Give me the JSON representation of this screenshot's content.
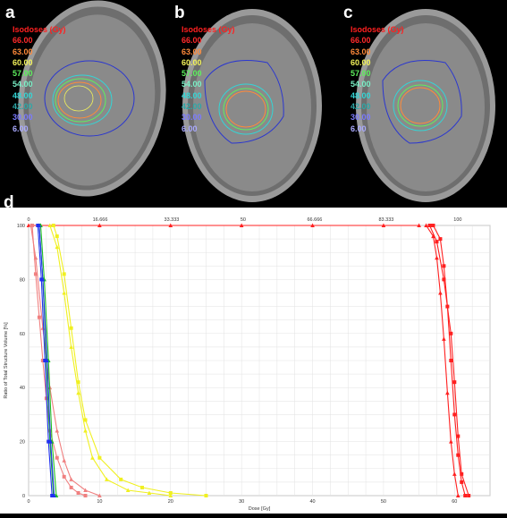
{
  "panels": [
    {
      "letter": "a"
    },
    {
      "letter": "b"
    },
    {
      "letter": "c"
    }
  ],
  "isodose_legend": {
    "title": "Isodoses (Gy)",
    "levels": [
      {
        "label": "66.00",
        "color": "#ff2a2a"
      },
      {
        "label": "63.00",
        "color": "#ff8a3a"
      },
      {
        "label": "60.00",
        "color": "#f2f25a"
      },
      {
        "label": "57.00",
        "color": "#5ef05e"
      },
      {
        "label": "54.00",
        "color": "#7af2c8"
      },
      {
        "label": "48.00",
        "color": "#33d6d6"
      },
      {
        "label": "42.00",
        "color": "#2ea8a8"
      },
      {
        "label": "30.00",
        "color": "#7a7aff"
      },
      {
        "label": "6.00",
        "color": "#aaaaff"
      }
    ]
  },
  "dvh_letter": "d",
  "chart_data": {
    "type": "line",
    "xlabel": "Dose [Gy]",
    "ylabel": "Ratio of Total Structure Volume [%]",
    "xlim": [
      0,
      65
    ],
    "ylim": [
      0,
      100
    ],
    "x_ticks": [
      "0",
      "10",
      "20",
      "30",
      "40",
      "50",
      "60"
    ],
    "y_ticks": [
      "0",
      "20",
      "40",
      "60",
      "80",
      "100"
    ],
    "top_axis_ticks": [
      "0",
      "16.666",
      "33.333",
      "50",
      "66.666",
      "83.333",
      "100"
    ],
    "series": [
      {
        "color": "#ff2020",
        "marker": "square",
        "x": [
          57,
          58,
          58.5,
          59,
          59.5,
          60,
          60.5,
          61,
          61.5
        ],
        "y": [
          100,
          95,
          85,
          70,
          50,
          30,
          15,
          5,
          0
        ]
      },
      {
        "color": "#ff2020",
        "marker": "triangle",
        "x": [
          56,
          57,
          57.5,
          58,
          58.5,
          59,
          59.5,
          60,
          60.5
        ],
        "y": [
          100,
          96,
          88,
          75,
          58,
          38,
          20,
          8,
          0
        ]
      },
      {
        "color": "#ff2020",
        "marker": "square",
        "x": [
          56.5,
          57.5,
          58.5,
          59.5,
          60,
          60.5,
          61,
          62
        ],
        "y": [
          100,
          94,
          80,
          60,
          42,
          22,
          8,
          0
        ]
      },
      {
        "color": "#ff2020",
        "marker": "triangle",
        "x": [
          0,
          10,
          20,
          30,
          40,
          50,
          55
        ],
        "y": [
          100,
          100,
          100,
          100,
          100,
          100,
          100
        ]
      },
      {
        "color": "#f0f020",
        "marker": "square",
        "x": [
          3.5,
          4,
          5,
          6,
          7,
          8,
          10,
          13,
          16,
          20,
          25
        ],
        "y": [
          100,
          96,
          82,
          62,
          42,
          28,
          14,
          6,
          3,
          1,
          0
        ]
      },
      {
        "color": "#f0f020",
        "marker": "triangle",
        "x": [
          3,
          4,
          5,
          6,
          7,
          8,
          9,
          11,
          14,
          17,
          20
        ],
        "y": [
          100,
          92,
          75,
          55,
          38,
          24,
          14,
          6,
          2,
          1,
          0
        ]
      },
      {
        "color": "#f08080",
        "marker": "square",
        "x": [
          0.5,
          1,
          1.5,
          2,
          2.5,
          3,
          4,
          5,
          6,
          7,
          8
        ],
        "y": [
          100,
          82,
          66,
          50,
          36,
          24,
          14,
          7,
          3,
          1,
          0
        ]
      },
      {
        "color": "#f08080",
        "marker": "triangle",
        "x": [
          0.3,
          1,
          2,
          3,
          4,
          5,
          6,
          8,
          10
        ],
        "y": [
          100,
          88,
          62,
          40,
          24,
          13,
          6,
          2,
          0
        ]
      },
      {
        "color": "#20c020",
        "marker": "square",
        "x": [
          1.5,
          2,
          2.5,
          3,
          3.5
        ],
        "y": [
          100,
          80,
          50,
          20,
          0
        ]
      },
      {
        "color": "#20c020",
        "marker": "triangle",
        "x": [
          1.7,
          2.2,
          2.8,
          3.3,
          3.9
        ],
        "y": [
          100,
          80,
          50,
          20,
          0
        ]
      },
      {
        "color": "#2030f0",
        "marker": "square",
        "x": [
          1.3,
          1.8,
          2.3,
          2.8,
          3.3
        ],
        "y": [
          100,
          80,
          50,
          20,
          0
        ]
      },
      {
        "color": "#2030f0",
        "marker": "triangle",
        "x": [
          1.5,
          2,
          2.6,
          3.1,
          3.6
        ],
        "y": [
          100,
          80,
          50,
          20,
          0
        ]
      }
    ]
  }
}
